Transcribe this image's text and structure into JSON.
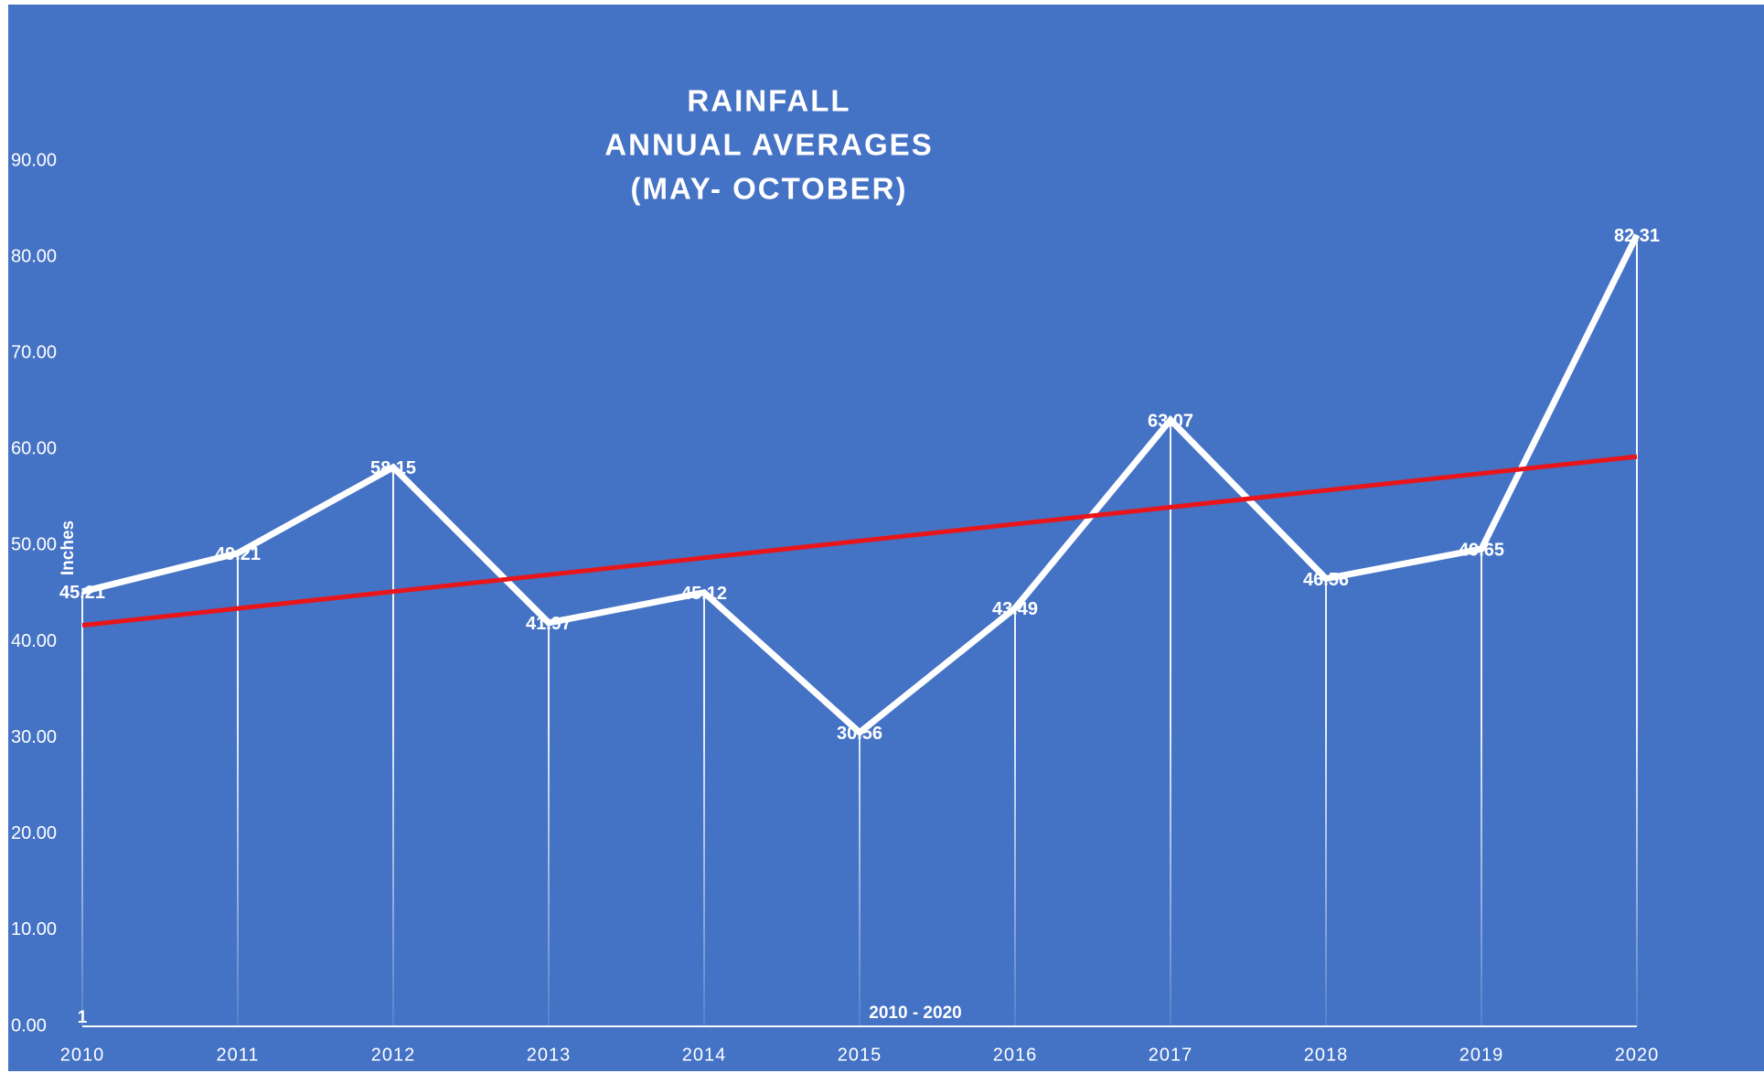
{
  "chart_data": {
    "type": "line",
    "title": [
      "RAINFALL",
      "ANNUAL AVERAGES",
      "(MAY- OCTOBER)"
    ],
    "y_label": "Inches",
    "x_label": "2010 - 2020",
    "annotation": "1",
    "categories": [
      "2010",
      "2011",
      "2012",
      "2013",
      "2014",
      "2015",
      "2016",
      "2017",
      "2018",
      "2019",
      "2020"
    ],
    "series": [
      {
        "color": "#ffffff",
        "values": [
          45.21,
          49.21,
          58.15,
          41.97,
          45.12,
          30.56,
          43.49,
          63.07,
          46.56,
          49.65,
          82.31
        ]
      }
    ],
    "drop_lines": true,
    "trendline": {
      "type": "linear",
      "color": "#e8161b"
    },
    "background": "#4472c4",
    "ylim": [
      0,
      90
    ],
    "yticks": [
      {
        "value": 0,
        "label": "0.00"
      },
      {
        "value": 10,
        "label": "10.00"
      },
      {
        "value": 20,
        "label": "20.00"
      },
      {
        "value": 30,
        "label": "30.00"
      },
      {
        "value": 40,
        "label": "40.00"
      },
      {
        "value": 50,
        "label": "50.00"
      },
      {
        "value": 60,
        "label": "60.00"
      },
      {
        "value": 70,
        "label": "70.00"
      },
      {
        "value": 80,
        "label": "80.00"
      },
      {
        "value": 90,
        "label": "90.00"
      }
    ],
    "grid": false
  }
}
